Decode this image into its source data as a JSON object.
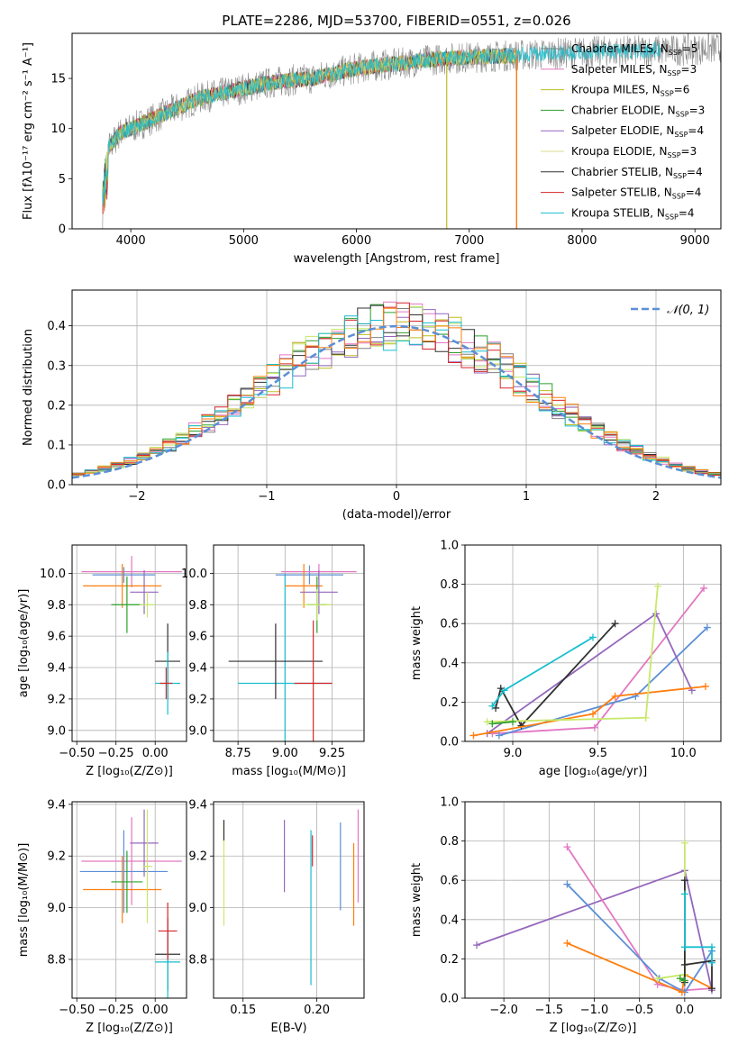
{
  "chart_data": [
    {
      "type": "line",
      "title": "PLATE=2286, MJD=53700, FIBERID=0551, z=0.026",
      "xlabel": "wavelength [Angstrom, rest frame]",
      "ylabel": "Flux [fλ10⁻¹⁷ erg cm⁻² s⁻¹ A⁻¹]",
      "xlim": [
        3480,
        9230
      ],
      "ylim": [
        0,
        19.5
      ],
      "xticks": [
        "4000",
        "5000",
        "6000",
        "7000",
        "8000",
        "9000"
      ],
      "yticks": [
        "0",
        "5",
        "10",
        "15"
      ],
      "grid": false,
      "legend": "top-right",
      "data_trend": {
        "x": [
          3750,
          3800,
          3900,
          4000,
          4200,
          4400,
          4600,
          4800,
          5000,
          5200,
          5400,
          5600,
          5800,
          6000,
          6200,
          6400,
          6600,
          6800,
          7000,
          7200,
          7400,
          7600,
          7800,
          8000,
          8200,
          8400,
          8600,
          8800,
          9000,
          9200
        ],
        "y": [
          5,
          8,
          9.5,
          10,
          11,
          12,
          13,
          13.5,
          14,
          14.5,
          14.8,
          15,
          15.5,
          16,
          16.3,
          16.5,
          16.8,
          17,
          17.1,
          17.2,
          17.3,
          17.4,
          17.5,
          17.6,
          17.7,
          17.7,
          17.8,
          17.8,
          17.9,
          18
        ]
      },
      "drops": [
        {
          "series": "Kroupa MILES",
          "x": 6800
        },
        {
          "series": "Salpeter STELIB",
          "x": 7420
        },
        {
          "series": "Kroupa ELODIE",
          "x": 6800
        }
      ],
      "series": [
        {
          "name": "Chabrier MILES, N",
          "sub": "SSP",
          "suffix": "=5",
          "color": "#808080"
        },
        {
          "name": "Salpeter MILES, N",
          "sub": "SSP",
          "suffix": "=3",
          "color": "#e377c2"
        },
        {
          "name": "Kroupa MILES, N",
          "sub": "SSP",
          "suffix": "=6",
          "color": "#bcbd22"
        },
        {
          "name": "Chabrier ELODIE, N",
          "sub": "SSP",
          "suffix": "=3",
          "color": "#2ca02c"
        },
        {
          "name": "Salpeter ELODIE, N",
          "sub": "SSP",
          "suffix": "=4",
          "color": "#9467bd"
        },
        {
          "name": "Kroupa ELODIE, N",
          "sub": "SSP",
          "suffix": "=3",
          "color": "#dbdb8d"
        },
        {
          "name": "Chabrier STELIB, N",
          "sub": "SSP",
          "suffix": "=4",
          "color": "#303030"
        },
        {
          "name": "Salpeter STELIB, N",
          "sub": "SSP",
          "suffix": "=4",
          "color": "#d62728"
        },
        {
          "name": "Kroupa STELIB, N",
          "sub": "SSP",
          "suffix": "=4",
          "color": "#17becf"
        }
      ]
    },
    {
      "type": "histogram",
      "xlabel": "(data-model)/error",
      "ylabel": "Normed distribution",
      "xlim": [
        -2.5,
        2.5
      ],
      "ylim": [
        0,
        0.49
      ],
      "xticks": [
        "−2",
        "−1",
        "0",
        "1",
        "2"
      ],
      "yticks": [
        "0.0",
        "0.1",
        "0.2",
        "0.3",
        "0.4"
      ],
      "grid": true,
      "legend": "top-right",
      "legend_label": "𝒩(0, 1)",
      "reference_color": "#5b8fd6",
      "bins": [
        -2.5,
        -2.4,
        -2.3,
        -2.2,
        -2.1,
        -2.0,
        -1.9,
        -1.8,
        -1.7,
        -1.6,
        -1.5,
        -1.4,
        -1.3,
        -1.2,
        -1.1,
        -1.0,
        -0.9,
        -0.8,
        -0.7,
        -0.6,
        -0.5,
        -0.4,
        -0.3,
        -0.2,
        -0.1,
        0.0,
        0.1,
        0.2,
        0.3,
        0.4,
        0.5,
        0.6,
        0.7,
        0.8,
        0.9,
        1.0,
        1.1,
        1.2,
        1.3,
        1.4,
        1.5,
        1.6,
        1.7,
        1.8,
        1.9,
        2.0,
        2.1,
        2.2,
        2.3,
        2.4,
        2.5
      ],
      "hist_colors": [
        "#808080",
        "#e377c2",
        "#bcbd22",
        "#2ca02c",
        "#9467bd",
        "#c8e86a",
        "#303030",
        "#d62728",
        "#17becf",
        "#ff7f0e"
      ]
    },
    {
      "type": "scatter",
      "xlabel": "Z [log₁₀(Z/Z⊙)]",
      "ylabel": "age  [log₁₀(age/yr)]",
      "xlim": [
        -0.53,
        0.2
      ],
      "ylim": [
        8.93,
        10.18
      ],
      "xticks": [
        "−0.50",
        "−0.25",
        "0.00"
      ],
      "yticks": [
        "9.0",
        "9.2",
        "9.4",
        "9.6",
        "9.8",
        "10.0"
      ],
      "points": [
        {
          "x": -0.15,
          "y": 10.01,
          "xerr": 0.32,
          "yerr": 0.1,
          "color": "#e377c2"
        },
        {
          "x": -0.2,
          "y": 9.99,
          "xerr": 0.2,
          "yerr": 0.05,
          "color": "#5b8fd6"
        },
        {
          "x": -0.21,
          "y": 9.92,
          "xerr": 0.25,
          "yerr": 0.14,
          "color": "#ff7f0e"
        },
        {
          "x": -0.07,
          "y": 9.88,
          "xerr": 0.09,
          "yerr": 0.14,
          "color": "#9467bd"
        },
        {
          "x": -0.18,
          "y": 9.8,
          "xerr": 0.1,
          "yerr": 0.18,
          "color": "#2ca02c"
        },
        {
          "x": -0.05,
          "y": 9.8,
          "xerr": 0.05,
          "yerr": 0.08,
          "color": "#c8e86a"
        },
        {
          "x": 0.08,
          "y": 9.44,
          "xerr": 0.08,
          "yerr": 0.24,
          "color": "#303030"
        },
        {
          "x": 0.08,
          "y": 9.3,
          "xerr": 0.08,
          "yerr": 0.2,
          "color": "#17becf"
        },
        {
          "x": 0.07,
          "y": 9.3,
          "xerr": 0.04,
          "yerr": 0.1,
          "color": "#d62728"
        }
      ]
    },
    {
      "type": "scatter",
      "xlabel": "mass [log₁₀(M/M⊙)]",
      "ylabel": "",
      "xlim": [
        8.62,
        9.42
      ],
      "ylim": [
        8.93,
        10.18
      ],
      "xticks": [
        "8.75",
        "9.00",
        "9.25"
      ],
      "yticks": [
        "9.0",
        "9.2",
        "9.4",
        "9.6",
        "9.8",
        "10.0"
      ],
      "points": [
        {
          "x": 9.0,
          "y": 9.3,
          "xerr": 0.25,
          "yerr": 0.7,
          "color": "#17becf"
        },
        {
          "x": 8.95,
          "y": 9.44,
          "xerr": 0.25,
          "yerr": 0.24,
          "color": "#303030"
        },
        {
          "x": 9.13,
          "y": 9.99,
          "xerr": 0.18,
          "yerr": 0.06,
          "color": "#5b8fd6"
        },
        {
          "x": 9.18,
          "y": 10.01,
          "xerr": 0.2,
          "yerr": 0.05,
          "color": "#e377c2"
        },
        {
          "x": 9.1,
          "y": 9.92,
          "xerr": 0.1,
          "yerr": 0.14,
          "color": "#ff7f0e"
        },
        {
          "x": 9.18,
          "y": 9.88,
          "xerr": 0.1,
          "yerr": 0.14,
          "color": "#9467bd"
        },
        {
          "x": 9.17,
          "y": 9.8,
          "xerr": 0.05,
          "yerr": 0.18,
          "color": "#2ca02c"
        },
        {
          "x": 9.17,
          "y": 9.8,
          "xerr": 0.08,
          "yerr": 0.1,
          "color": "#c8e86a"
        },
        {
          "x": 9.15,
          "y": 9.3,
          "xerr": 0.1,
          "yerr": 0.4,
          "color": "#d62728"
        }
      ]
    },
    {
      "type": "line",
      "xlabel": "age  [log₁₀(age/yr)]",
      "ylabel": "mass weight",
      "xlim": [
        8.72,
        10.22
      ],
      "ylim": [
        0,
        1.0
      ],
      "xticks": [
        "9.0",
        "9.5",
        "10.0"
      ],
      "yticks": [
        "0.0",
        "0.2",
        "0.4",
        "0.6",
        "0.8",
        "1.0"
      ],
      "grid": true,
      "series": [
        {
          "color": "#e377c2",
          "x": [
            8.88,
            9.48,
            10.12
          ],
          "y": [
            0.04,
            0.07,
            0.78
          ]
        },
        {
          "color": "#5b8fd6",
          "x": [
            8.92,
            9.72,
            10.14
          ],
          "y": [
            0.03,
            0.23,
            0.58
          ]
        },
        {
          "color": "#9467bd",
          "x": [
            8.85,
            9.84,
            10.05
          ],
          "y": [
            0.04,
            0.65,
            0.26
          ]
        },
        {
          "color": "#303030",
          "x": [
            8.9,
            8.93,
            9.05,
            9.6
          ],
          "y": [
            0.17,
            0.27,
            0.08,
            0.6
          ]
        },
        {
          "color": "#17becf",
          "x": [
            8.88,
            8.95,
            9.47
          ],
          "y": [
            0.18,
            0.26,
            0.53
          ]
        },
        {
          "color": "#ff7f0e",
          "x": [
            8.77,
            9.47,
            9.6,
            10.13
          ],
          "y": [
            0.03,
            0.14,
            0.23,
            0.28
          ]
        },
        {
          "color": "#c8e86a",
          "x": [
            8.85,
            9.78,
            9.85
          ],
          "y": [
            0.1,
            0.12,
            0.79
          ]
        },
        {
          "color": "#2ca02c",
          "x": [
            8.88,
            9.0
          ],
          "y": [
            0.09,
            0.1
          ]
        }
      ]
    },
    {
      "type": "scatter",
      "xlabel": "Z [log₁₀(Z/Z⊙)]",
      "ylabel": "mass [log₁₀(M/M⊙)]",
      "xlim": [
        -0.53,
        0.2
      ],
      "ylim": [
        8.65,
        9.41
      ],
      "xticks": [
        "−0.50",
        "−0.25",
        "0.00"
      ],
      "yticks": [
        "8.8",
        "9.0",
        "9.2",
        "9.4"
      ],
      "points": [
        {
          "x": -0.15,
          "y": 9.18,
          "xerr": 0.32,
          "yerr": 0.17,
          "color": "#e377c2"
        },
        {
          "x": -0.2,
          "y": 9.14,
          "xerr": 0.28,
          "yerr": 0.16,
          "color": "#5b8fd6"
        },
        {
          "x": -0.21,
          "y": 9.07,
          "xerr": 0.25,
          "yerr": 0.13,
          "color": "#ff7f0e"
        },
        {
          "x": -0.07,
          "y": 9.25,
          "xerr": 0.09,
          "yerr": 0.13,
          "color": "#9467bd"
        },
        {
          "x": -0.18,
          "y": 9.1,
          "xerr": 0.1,
          "yerr": 0.12,
          "color": "#2ca02c"
        },
        {
          "x": -0.05,
          "y": 9.16,
          "xerr": 0.03,
          "yerr": 0.22,
          "color": "#c8e86a"
        },
        {
          "x": 0.08,
          "y": 8.82,
          "xerr": 0.08,
          "yerr": 0.14,
          "color": "#303030"
        },
        {
          "x": 0.08,
          "y": 8.79,
          "xerr": 0.08,
          "yerr": 0.14,
          "color": "#17becf"
        },
        {
          "x": 0.08,
          "y": 8.91,
          "xerr": 0.06,
          "yerr": 0.11,
          "color": "#d62728"
        }
      ]
    },
    {
      "type": "scatter",
      "xlabel": "E(B-V)",
      "ylabel": "",
      "xlim": [
        0.13,
        0.232
      ],
      "ylim": [
        8.65,
        9.41
      ],
      "xticks": [
        "0.15",
        "0.20"
      ],
      "yticks": [
        "8.8",
        "9.0",
        "9.2",
        "9.4"
      ],
      "points": [
        {
          "x": 0.137,
          "y": 9.13,
          "yerr": 0.2,
          "color": "#c8e86a"
        },
        {
          "x": 0.137,
          "y": 9.3,
          "yerr": 0.04,
          "color": "#303030"
        },
        {
          "x": 0.178,
          "y": 9.2,
          "yerr": 0.14,
          "color": "#9467bd"
        },
        {
          "x": 0.196,
          "y": 9.0,
          "yerr": 0.3,
          "color": "#17becf"
        },
        {
          "x": 0.197,
          "y": 9.22,
          "yerr": 0.06,
          "color": "#d62728"
        },
        {
          "x": 0.216,
          "y": 9.16,
          "yerr": 0.17,
          "color": "#5b8fd6"
        },
        {
          "x": 0.225,
          "y": 9.09,
          "yerr": 0.16,
          "color": "#ff7f0e"
        },
        {
          "x": 0.228,
          "y": 9.2,
          "yerr": 0.18,
          "color": "#e377c2"
        }
      ]
    },
    {
      "type": "line",
      "xlabel": "Z [log₁₀(Z/Z⊙)]",
      "ylabel": "mass weight",
      "xlim": [
        -2.43,
        0.4
      ],
      "ylim": [
        0,
        1.0
      ],
      "xticks": [
        "−2.0",
        "−1.5",
        "−1.0",
        "−0.5",
        "0.0"
      ],
      "yticks": [
        "0.0",
        "0.2",
        "0.4",
        "0.6",
        "0.8",
        "1.0"
      ],
      "grid": true,
      "series": [
        {
          "color": "#9467bd",
          "x": [
            -2.3,
            0.0,
            0.3
          ],
          "y": [
            0.27,
            0.65,
            0.04
          ]
        },
        {
          "color": "#e377c2",
          "x": [
            -1.3,
            -0.3,
            0.0,
            0.3
          ],
          "y": [
            0.77,
            0.07,
            0.04,
            0.05
          ]
        },
        {
          "color": "#5b8fd6",
          "x": [
            -1.3,
            -0.28,
            0.0,
            0.3
          ],
          "y": [
            0.58,
            0.1,
            0.03,
            0.24
          ]
        },
        {
          "color": "#ff7f0e",
          "x": [
            -1.3,
            -0.03,
            0.0,
            0.3
          ],
          "y": [
            0.28,
            0.03,
            0.12,
            0.05
          ]
        },
        {
          "color": "#c8e86a",
          "x": [
            -0.3,
            0.0,
            0.0
          ],
          "y": [
            0.1,
            0.12,
            0.79
          ]
        },
        {
          "color": "#303030",
          "x": [
            0.0,
            0.0,
            0.0,
            0.3,
            0.3
          ],
          "y": [
            0.6,
            0.08,
            0.17,
            0.19,
            0.05
          ]
        },
        {
          "color": "#17becf",
          "x": [
            0.0,
            0.0,
            0.3,
            0.3
          ],
          "y": [
            0.53,
            0.26,
            0.26,
            0.18
          ]
        },
        {
          "color": "#2ca02c",
          "x": [
            -0.05,
            0.0
          ],
          "y": [
            0.1,
            0.09
          ]
        }
      ]
    }
  ]
}
